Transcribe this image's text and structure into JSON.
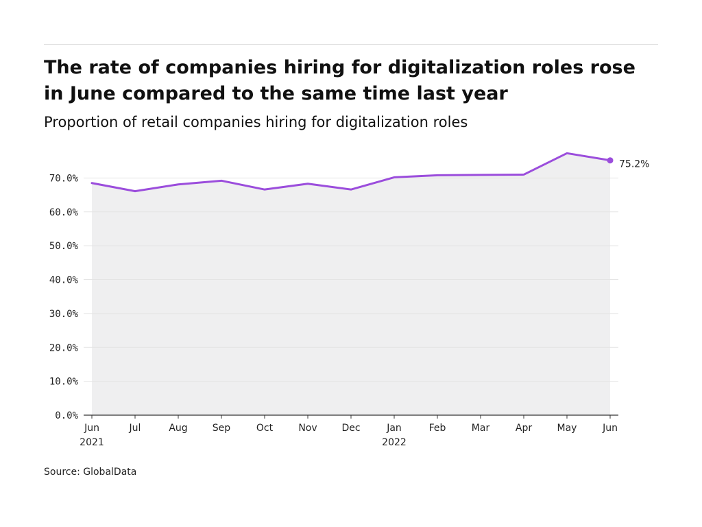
{
  "header": {
    "title": "The rate of companies hiring for digitalization roles rose in June compared to the same time last year",
    "subtitle": "Proportion of retail companies hiring for digitalization roles"
  },
  "footer": {
    "source": "Source: GlobalData"
  },
  "colors": {
    "line": "#9b4ddc",
    "area": "#efeff0",
    "grid": "#e3e3e3",
    "axis": "#333333"
  },
  "chart_data": {
    "type": "area",
    "title": "The rate of companies hiring for digitalization roles rose in June compared to the same time last year",
    "subtitle": "Proportion of retail companies hiring for digitalization roles",
    "x": [
      "2021-06",
      "2021-07",
      "2021-08",
      "2021-09",
      "2021-10",
      "2021-11",
      "2021-12",
      "2022-01",
      "2022-02",
      "2022-03",
      "2022-04",
      "2022-05",
      "2022-06"
    ],
    "x_tick_labels": [
      [
        "Jun",
        "2021"
      ],
      [
        "Jul"
      ],
      [
        "Aug"
      ],
      [
        "Sep"
      ],
      [
        "Oct"
      ],
      [
        "Nov"
      ],
      [
        "Dec"
      ],
      [
        "Jan",
        "2022"
      ],
      [
        "Feb"
      ],
      [
        "Mar"
      ],
      [
        "Apr"
      ],
      [
        "May"
      ],
      [
        "Jun"
      ]
    ],
    "series": [
      {
        "values": [
          68.5,
          66.1,
          68.1,
          69.2,
          66.6,
          68.3,
          66.6,
          70.2,
          70.8,
          70.9,
          71.0,
          77.3,
          75.2
        ]
      }
    ],
    "y_ticks": [
      0,
      10,
      20,
      30,
      40,
      50,
      60,
      70
    ],
    "y_tick_labels": [
      "0.0%",
      "10.0%",
      "20.0%",
      "30.0%",
      "40.0%",
      "50.0%",
      "60.0%",
      "70.0%"
    ],
    "ylim": [
      0,
      80
    ],
    "end_label": "75.2%",
    "xlabel": "",
    "ylabel": "",
    "grid": true,
    "legend": "none"
  }
}
